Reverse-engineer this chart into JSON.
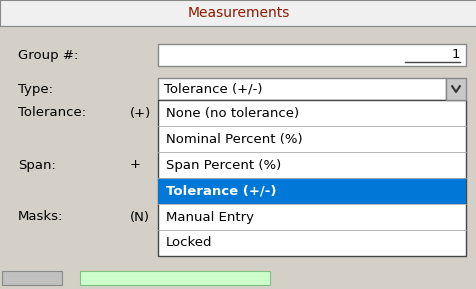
{
  "title": "Measurements",
  "title_color": "#8B1A00",
  "bg_color": "#D4D0C8",
  "white": "#FFFFFF",
  "border_color": "#888888",
  "dark_border": "#444444",
  "label_color": "#000000",
  "header_bg": "#F0F0F0",
  "selected_bg": "#0078D7",
  "selected_fg": "#FFFFFF",
  "item_fg": "#000000",
  "arrow_bg": "#C8C8C8",
  "bottom_gray_bg": "#C0C0C0",
  "bottom_green_bg": "#CCFFCC",
  "bottom_green_border": "#80C080",
  "group_label": "Group #:",
  "group_value": "1",
  "type_label": "Type:",
  "type_value": "Tolerance (+/-)",
  "tolerance_label": "Tolerance:",
  "tolerance_sym": "(+)",
  "span_label": "Span:",
  "span_sym": "+",
  "masks_label": "Masks:",
  "masks_sym": "(N)",
  "dropdown_items": [
    "None (no tolerance)",
    "Nominal Percent (%)",
    "Span Percent (%)",
    "Tolerance (+/-)",
    "Manual Entry",
    "Locked"
  ],
  "selected_index": 3,
  "figw": 4.77,
  "figh": 2.89,
  "dpi": 100
}
